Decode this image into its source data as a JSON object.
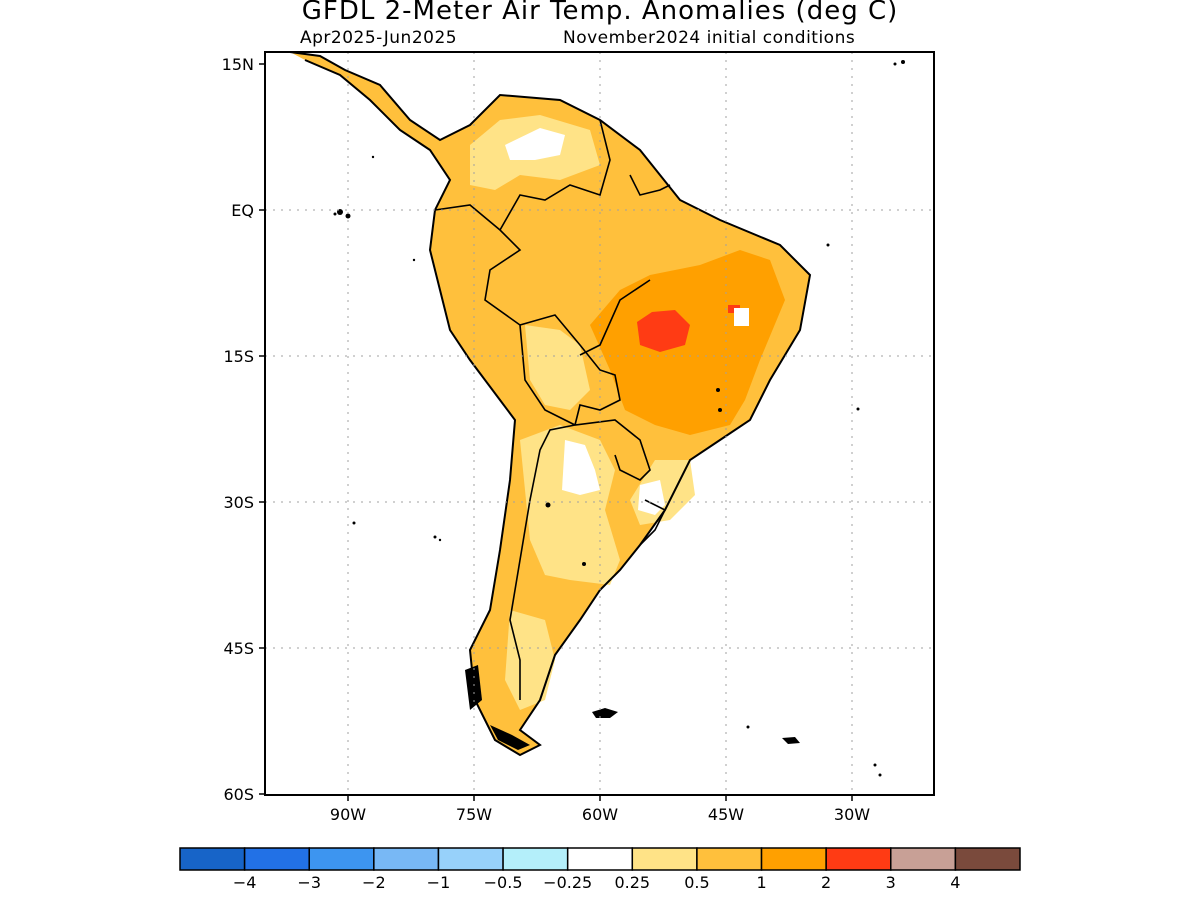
{
  "header": {
    "title": "GFDL 2-Meter Air Temp. Anomalies (deg C)",
    "period": "Apr2025-Jun2025",
    "initial_conditions": "November2024 initial conditions"
  },
  "map": {
    "region": "South America",
    "lat_ticks": [
      "15N",
      "EQ",
      "15S",
      "30S",
      "45S",
      "60S"
    ],
    "lon_ticks": [
      "90W",
      "75W",
      "60W",
      "45W",
      "30W"
    ],
    "lat_range": [
      -60,
      15
    ],
    "lon_range": [
      -100,
      -20
    ],
    "grid": "dotted"
  },
  "legend": {
    "labels": [
      "-4",
      "-3",
      "-2",
      "-1",
      "-0.5",
      "-0.25",
      "0.25",
      "0.5",
      "1",
      "2",
      "3",
      "4"
    ],
    "colors": [
      "#1764c8",
      "#2271e6",
      "#3d95f0",
      "#78b8f5",
      "#97d1fa",
      "#b4effa",
      "#ffffff",
      "#ffe387",
      "#ffc03c",
      "#ffa000",
      "#ff3b14",
      "#c8a096",
      "#7a4a3c"
    ]
  }
}
